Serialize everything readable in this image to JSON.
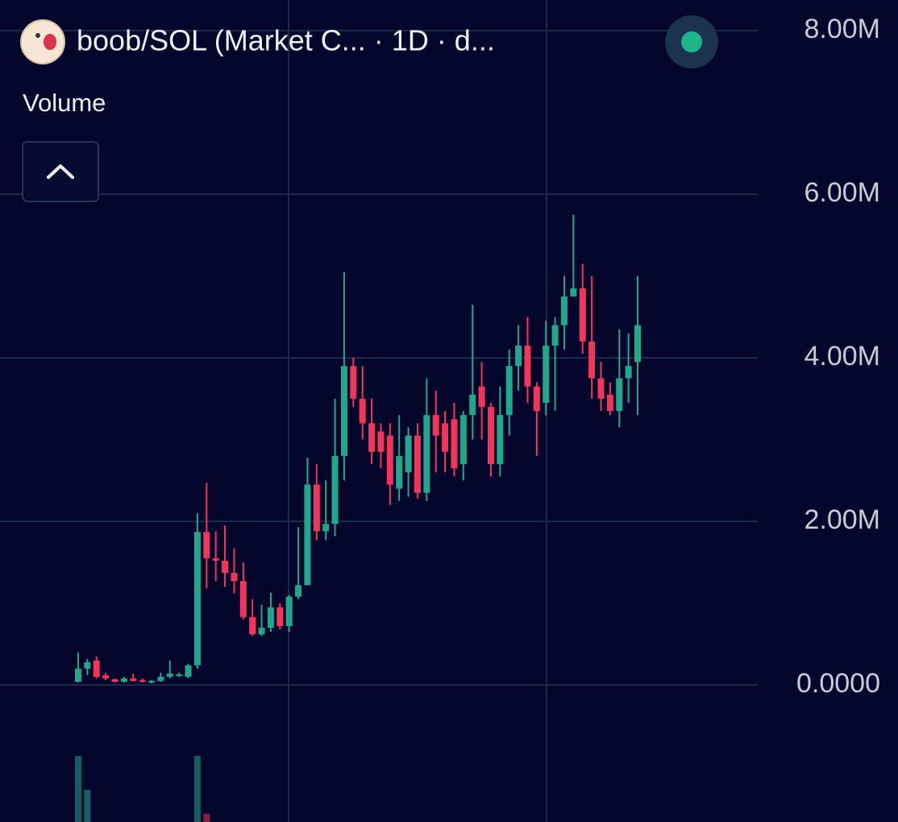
{
  "chart_data": {
    "type": "candlestick",
    "title": "boob/SOL (Market C... · 1D · d...",
    "subtitle": "Volume",
    "open": [
      40000,
      200000,
      300000,
      120000,
      70000,
      40000,
      80000,
      60000,
      30000,
      50000,
      100000,
      120000,
      100000,
      240000,
      1870000,
      1550000,
      1520000,
      1370000,
      1270000,
      830000,
      620000,
      700000,
      950000,
      720000,
      1080000,
      1220000,
      2450000,
      1880000,
      1970000,
      2800000,
      3900000,
      3500000,
      3200000,
      3100000,
      3050000,
      2400000,
      2600000,
      3050000,
      2350000,
      3300000,
      3200000,
      3250000,
      2700000,
      3300000,
      3650000,
      3400000,
      2700000,
      3300000,
      3900000,
      4150000,
      3650000,
      3450000,
      4150000,
      4400000,
      4750000,
      4850000,
      4200000,
      3750000,
      3550000,
      3350000,
      3750000,
      3950000
    ],
    "high": [
      400000,
      320000,
      350000,
      150000,
      80000,
      100000,
      140000,
      80000,
      60000,
      150000,
      300000,
      150000,
      260000,
      2100000,
      2470000,
      1880000,
      1950000,
      1670000,
      1500000,
      1050000,
      980000,
      1130000,
      1000000,
      1100000,
      1930000,
      2780000,
      2700000,
      2500000,
      3500000,
      5050000,
      4000000,
      3900000,
      3500000,
      3200000,
      3200000,
      3300000,
      3150000,
      3200000,
      3750000,
      3600000,
      3350000,
      3450000,
      3350000,
      4650000,
      3950000,
      3450000,
      3650000,
      4100000,
      4400000,
      4500000,
      3700000,
      4450000,
      4500000,
      5000000,
      5750000,
      5150000,
      5000000,
      3950000,
      3700000,
      4350000,
      4300000,
      5000000
    ],
    "low": [
      30000,
      120000,
      80000,
      60000,
      30000,
      30000,
      40000,
      30000,
      20000,
      40000,
      80000,
      100000,
      80000,
      200000,
      1180000,
      1270000,
      1200000,
      1120000,
      800000,
      600000,
      600000,
      650000,
      680000,
      650000,
      1050000,
      1220000,
      1770000,
      1770000,
      1820000,
      2500000,
      3400000,
      3000000,
      2700000,
      2650000,
      2200000,
      2250000,
      2300000,
      2280000,
      2250000,
      2600000,
      2600000,
      2550000,
      2500000,
      3000000,
      3000000,
      2550000,
      2550000,
      3050000,
      3600000,
      3450000,
      2800000,
      3300000,
      3350000,
      4100000,
      4750000,
      4050000,
      3500000,
      3350000,
      3300000,
      3150000,
      3450000,
      3300000
    ],
    "close": [
      200000,
      280000,
      100000,
      80000,
      40000,
      80000,
      50000,
      40000,
      50000,
      100000,
      140000,
      130000,
      240000,
      1870000,
      1550000,
      1520000,
      1370000,
      1270000,
      830000,
      620000,
      700000,
      950000,
      720000,
      1080000,
      1220000,
      2450000,
      1880000,
      1970000,
      2800000,
      3900000,
      3500000,
      3200000,
      2850000,
      2850000,
      2450000,
      2800000,
      3050000,
      2350000,
      3300000,
      3050000,
      2850000,
      2650000,
      3300000,
      3550000,
      3400000,
      2700000,
      3300000,
      3900000,
      4150000,
      3650000,
      3350000,
      4150000,
      4400000,
      4750000,
      4850000,
      4200000,
      3750000,
      3500000,
      3350000,
      3750000,
      3900000,
      4400000
    ],
    "volume": [
      82,
      40,
      null,
      null,
      null,
      null,
      null,
      null,
      null,
      null,
      null,
      null,
      null,
      82,
      10,
      null,
      null,
      null,
      null,
      null,
      null,
      null,
      null,
      null,
      null,
      null,
      null,
      null,
      null,
      null,
      null,
      null,
      null,
      null,
      null,
      null,
      null,
      null,
      null,
      null,
      null,
      null,
      null,
      null,
      null,
      null,
      null,
      null,
      null,
      null,
      null,
      null,
      null,
      null,
      null,
      null,
      null,
      null,
      null,
      null,
      null,
      null
    ],
    "up_color": "#22a68c",
    "down_color": "#f2355a",
    "ylim": [
      -1675000,
      8375000
    ],
    "yticks": [
      {
        "value": 8000000,
        "label": "8.00M"
      },
      {
        "value": 6000000,
        "label": "6.00M"
      },
      {
        "value": 4000000,
        "label": "4.00M"
      },
      {
        "value": 2000000,
        "label": "2.00M"
      },
      {
        "value": 0,
        "label": "0.0000"
      }
    ],
    "grid": true
  }
}
